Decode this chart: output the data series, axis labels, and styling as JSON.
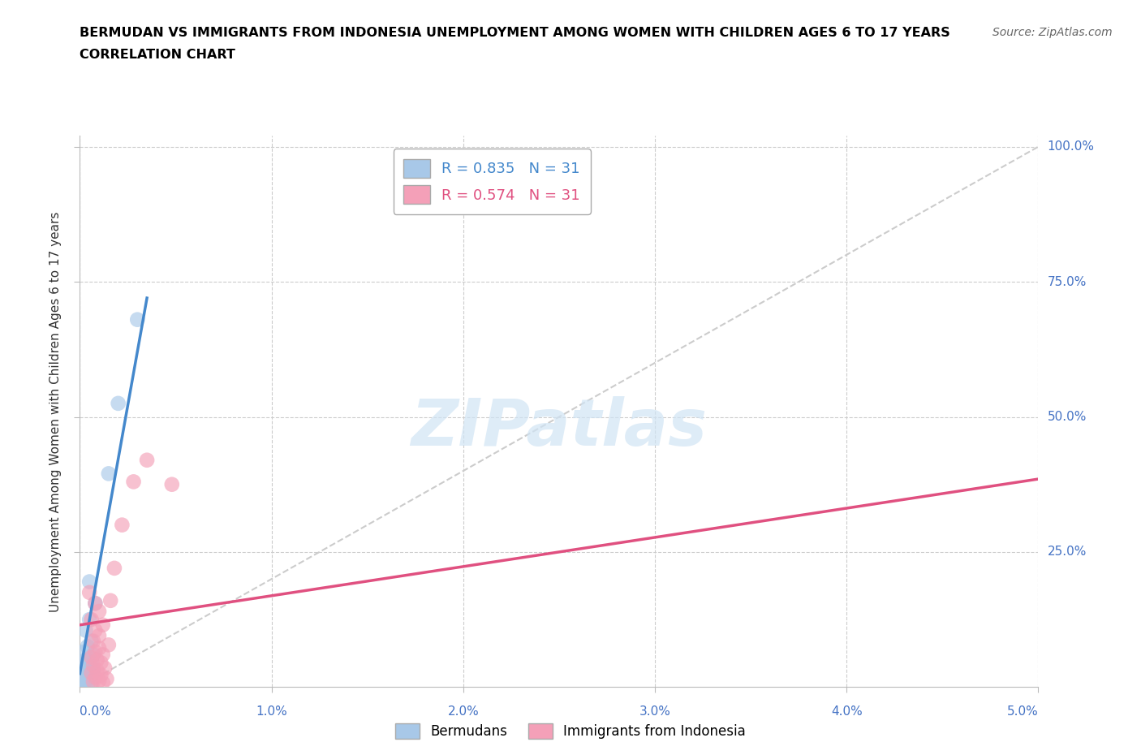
{
  "title_line1": "BERMUDAN VS IMMIGRANTS FROM INDONESIA UNEMPLOYMENT AMONG WOMEN WITH CHILDREN AGES 6 TO 17 YEARS",
  "title_line2": "CORRELATION CHART",
  "source_text": "Source: ZipAtlas.com",
  "ylabel": "Unemployment Among Women with Children Ages 6 to 17 years",
  "xlim": [
    0.0,
    0.05
  ],
  "ylim": [
    0.0,
    1.02
  ],
  "xtick_vals": [
    0.0,
    0.01,
    0.02,
    0.03,
    0.04,
    0.05
  ],
  "xtick_labels": [
    "0.0%",
    "1.0%",
    "2.0%",
    "3.0%",
    "4.0%",
    "5.0%"
  ],
  "ytick_vals": [
    0.25,
    0.5,
    0.75,
    1.0
  ],
  "ytick_labels": [
    "25.0%",
    "50.0%",
    "75.0%",
    "100.0%"
  ],
  "grid_color": "#cccccc",
  "background_color": "#ffffff",
  "watermark_text": "ZIPatlas",
  "legend_R_blue": "R = 0.835",
  "legend_N_blue": "N = 31",
  "legend_R_pink": "R = 0.574",
  "legend_N_pink": "N = 31",
  "blue_color": "#a8c8e8",
  "blue_line_color": "#4488cc",
  "pink_color": "#f4a0b8",
  "pink_line_color": "#e05080",
  "blue_scatter": [
    [
      0.0005,
      0.195
    ],
    [
      0.0008,
      0.155
    ],
    [
      0.0005,
      0.125
    ],
    [
      0.0003,
      0.105
    ],
    [
      0.0006,
      0.085
    ],
    [
      0.0004,
      0.075
    ],
    [
      0.0002,
      0.065
    ],
    [
      0.0007,
      0.06
    ],
    [
      0.0005,
      0.055
    ],
    [
      0.0003,
      0.05
    ],
    [
      0.0006,
      0.048
    ],
    [
      0.0004,
      0.045
    ],
    [
      0.0002,
      0.042
    ],
    [
      0.0005,
      0.038
    ],
    [
      0.0003,
      0.035
    ],
    [
      0.0007,
      0.032
    ],
    [
      0.0004,
      0.03
    ],
    [
      0.0002,
      0.028
    ],
    [
      0.0006,
      0.025
    ],
    [
      0.0003,
      0.022
    ],
    [
      0.0005,
      0.02
    ],
    [
      0.0002,
      0.018
    ],
    [
      0.0004,
      0.015
    ],
    [
      0.0003,
      0.012
    ],
    [
      0.0001,
      0.01
    ],
    [
      0.0006,
      0.008
    ],
    [
      0.0004,
      0.006
    ],
    [
      0.0002,
      0.005
    ],
    [
      0.0015,
      0.395
    ],
    [
      0.002,
      0.525
    ],
    [
      0.003,
      0.68
    ]
  ],
  "pink_scatter": [
    [
      0.0005,
      0.175
    ],
    [
      0.0008,
      0.155
    ],
    [
      0.001,
      0.14
    ],
    [
      0.0006,
      0.125
    ],
    [
      0.0012,
      0.115
    ],
    [
      0.0008,
      0.105
    ],
    [
      0.001,
      0.095
    ],
    [
      0.0007,
      0.085
    ],
    [
      0.0015,
      0.078
    ],
    [
      0.001,
      0.072
    ],
    [
      0.0008,
      0.065
    ],
    [
      0.0012,
      0.06
    ],
    [
      0.0006,
      0.055
    ],
    [
      0.0009,
      0.05
    ],
    [
      0.0011,
      0.045
    ],
    [
      0.0007,
      0.04
    ],
    [
      0.0013,
      0.035
    ],
    [
      0.0009,
      0.03
    ],
    [
      0.0006,
      0.026
    ],
    [
      0.0011,
      0.022
    ],
    [
      0.0008,
      0.018
    ],
    [
      0.0014,
      0.015
    ],
    [
      0.001,
      0.012
    ],
    [
      0.0007,
      0.01
    ],
    [
      0.0012,
      0.008
    ],
    [
      0.0016,
      0.16
    ],
    [
      0.0018,
      0.22
    ],
    [
      0.0022,
      0.3
    ],
    [
      0.0028,
      0.38
    ],
    [
      0.0035,
      0.42
    ],
    [
      0.0048,
      0.375
    ]
  ],
  "blue_trendline_x": [
    0.0,
    0.0035
  ],
  "blue_trendline_y": [
    0.025,
    0.72
  ],
  "pink_trendline_x": [
    0.0,
    0.05
  ],
  "pink_trendline_y": [
    0.115,
    0.385
  ],
  "diagonal_line": [
    [
      0.0,
      0.0
    ],
    [
      0.05,
      1.0
    ]
  ]
}
